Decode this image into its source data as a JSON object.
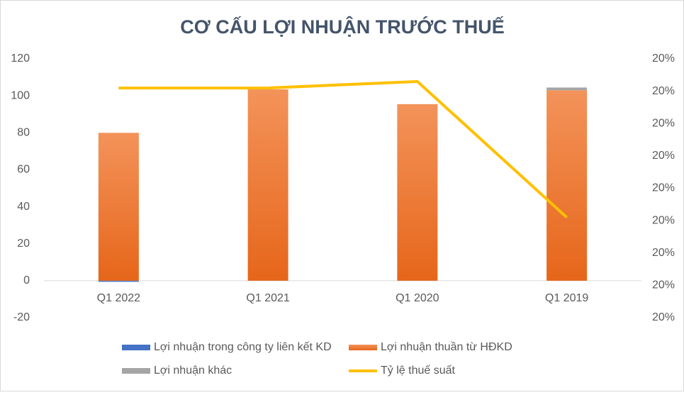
{
  "chart_data": {
    "type": "bar-line",
    "title": "CƠ CẤU LỢI NHUẬN TRƯỚC THUẾ",
    "categories": [
      "Q1 2022",
      "Q1 2021",
      "Q1 2020",
      "Q1 2019"
    ],
    "series": [
      {
        "name": "Lợi nhuận trong công ty liên kết KD",
        "color": "#4472c4",
        "values": [
          -0.5,
          0,
          0,
          0
        ]
      },
      {
        "name": "Lợi nhuận thuần từ HĐKD",
        "color": "#ed7d31",
        "values": [
          80,
          103.5,
          95.5,
          103
        ]
      },
      {
        "name": "Lợi nhuận khác",
        "color": "#a5a5a5",
        "values": [
          0,
          0,
          0,
          1.5
        ]
      },
      {
        "name": "Tỷ lệ thuế suất",
        "color": "#ffc000",
        "type": "line",
        "axis": "y2",
        "values": [
          20.031,
          20.031,
          20.033,
          19.991
        ]
      }
    ],
    "ylim": [
      -20,
      120
    ],
    "yticks": [
      -20,
      0,
      20,
      40,
      60,
      80,
      100,
      120
    ],
    "y2lim": [
      19.96,
      20.04
    ],
    "y2ticks": [
      {
        "value": 19.96,
        "label": "20%"
      },
      {
        "value": 19.97,
        "label": "20%"
      },
      {
        "value": 19.98,
        "label": "20%"
      },
      {
        "value": 19.99,
        "label": "20%"
      },
      {
        "value": 20.0,
        "label": "20%"
      },
      {
        "value": 20.01,
        "label": "20%"
      },
      {
        "value": 20.02,
        "label": "20%"
      },
      {
        "value": 20.03,
        "label": "20%"
      },
      {
        "value": 20.04,
        "label": "20%"
      }
    ],
    "legend": "bottom"
  }
}
